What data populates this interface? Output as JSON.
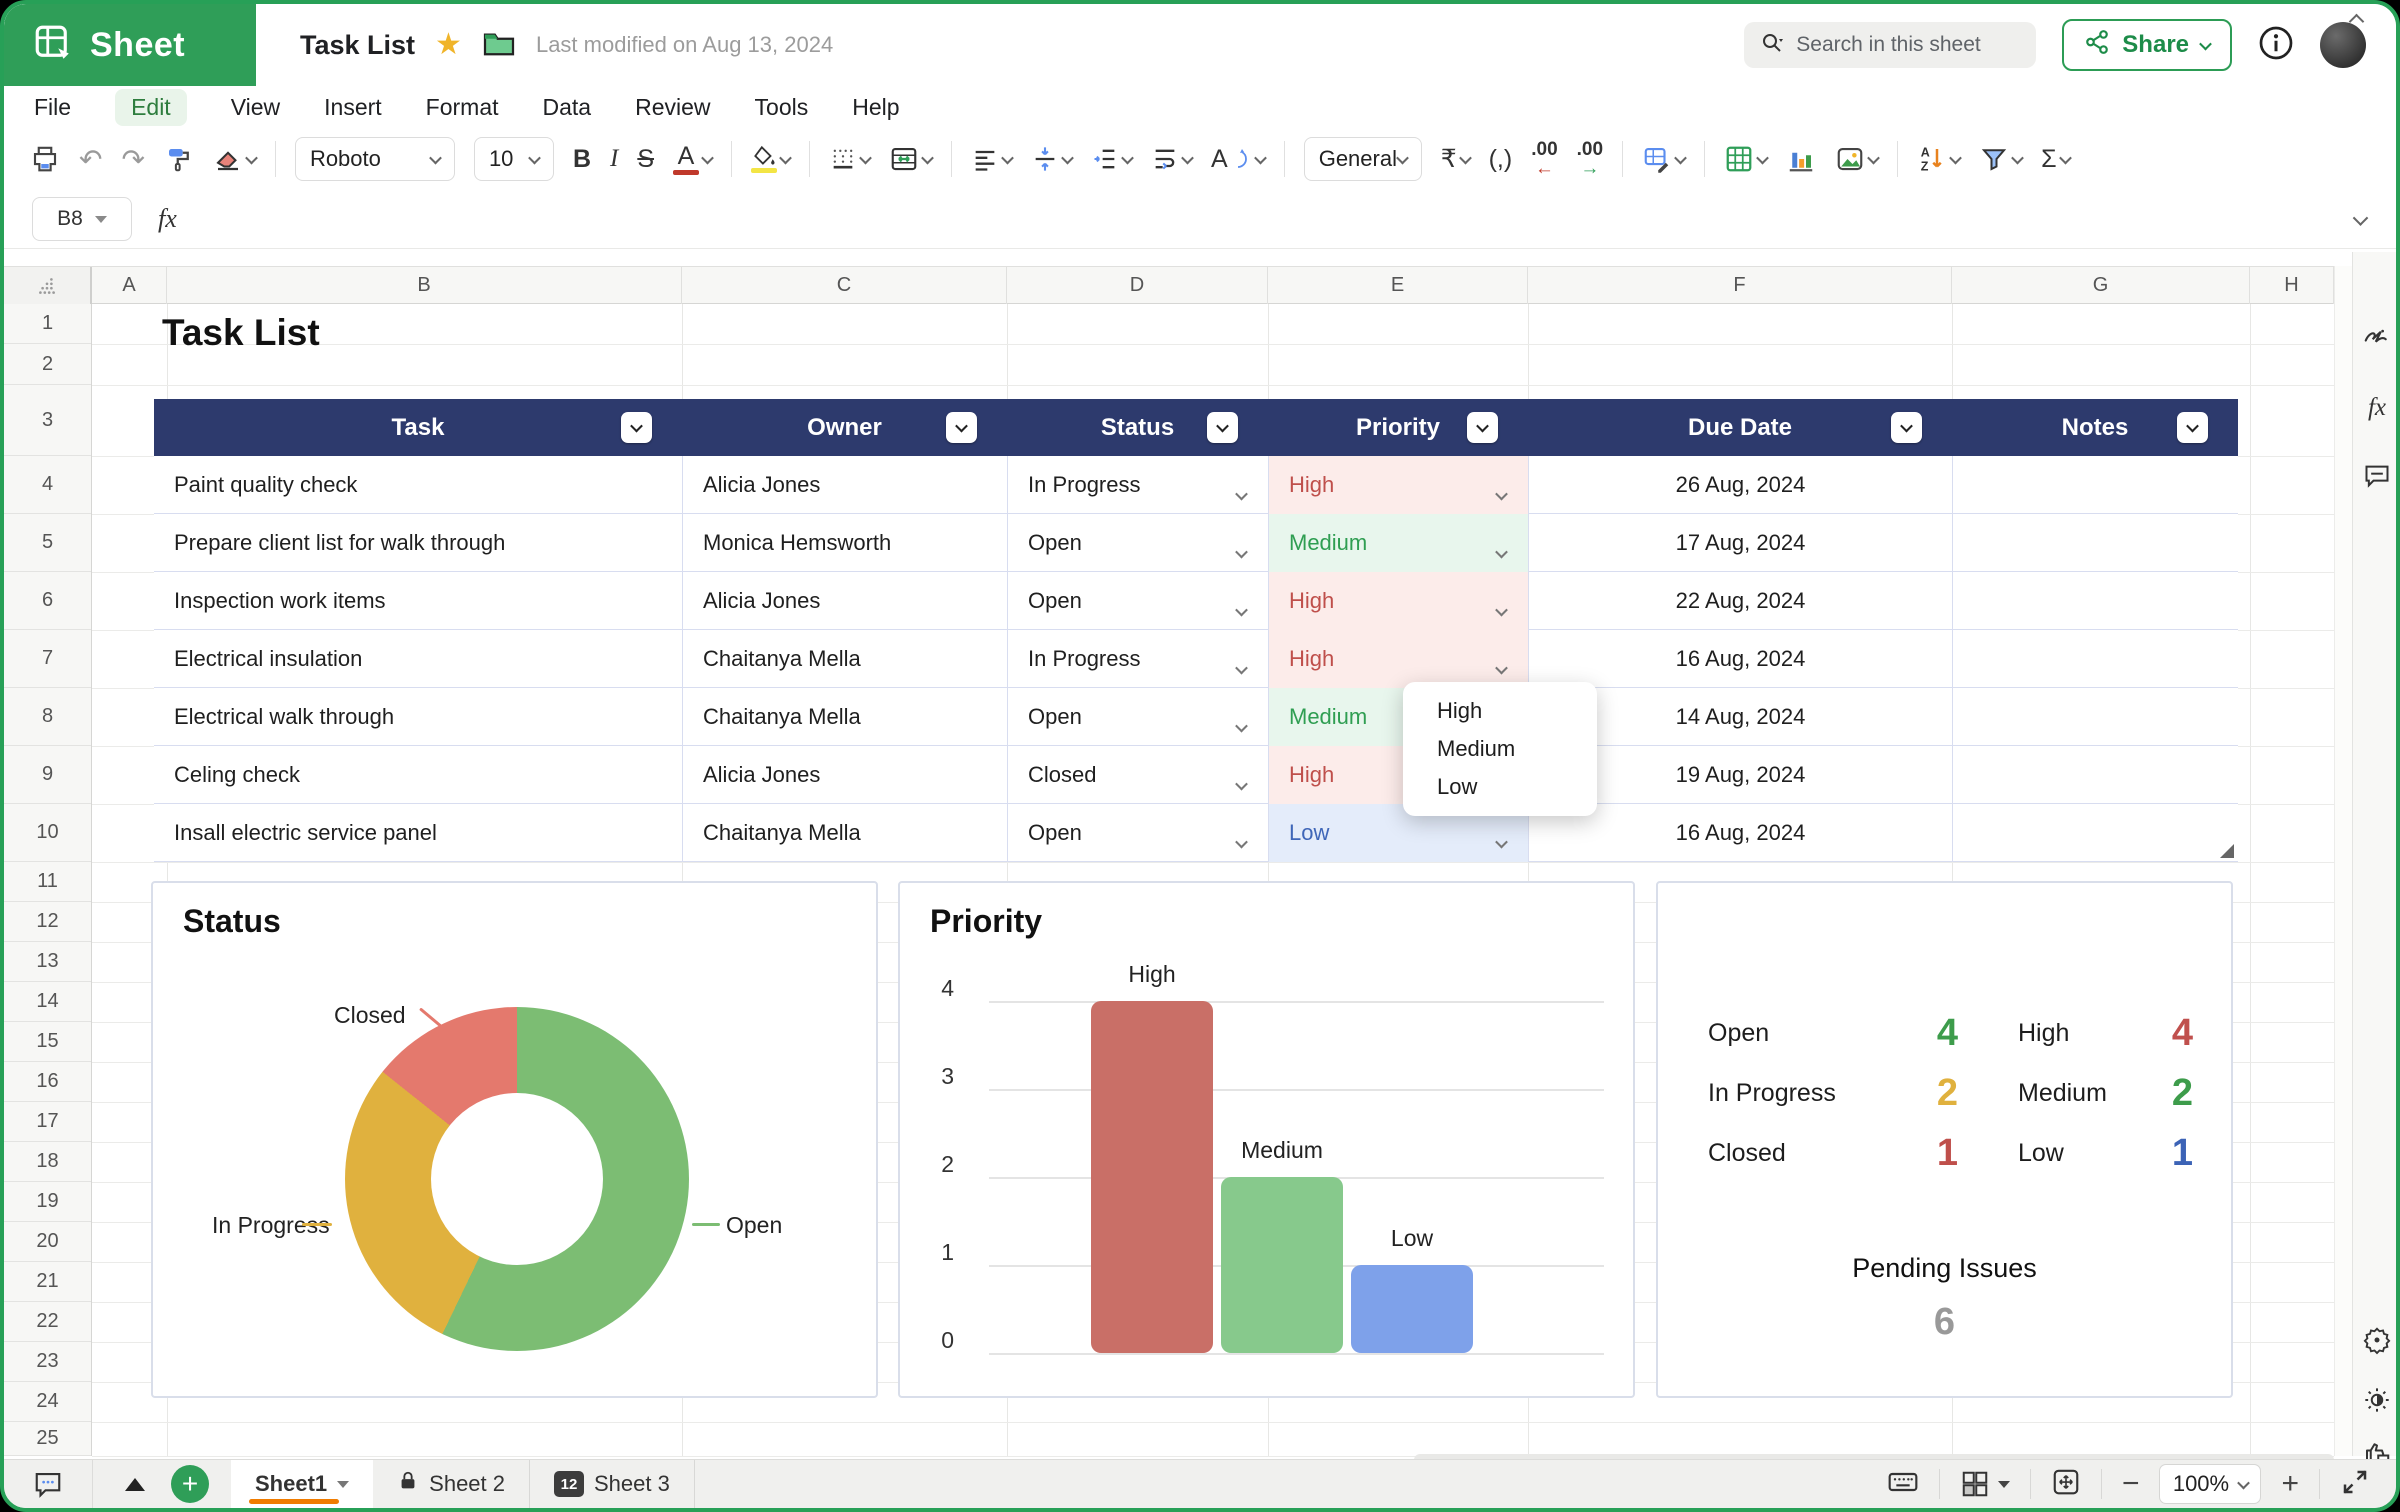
{
  "app": {
    "brand": "Sheet",
    "doc_title": "Task List",
    "last_modified": "Last modified on Aug 13, 2024"
  },
  "topbar": {
    "search_placeholder": "Search in this sheet",
    "share_label": "Share"
  },
  "menubar": {
    "items": [
      "File",
      "Edit",
      "View",
      "Insert",
      "Format",
      "Data",
      "Review",
      "Tools",
      "Help"
    ],
    "active_item": "Edit"
  },
  "toolbar": {
    "font_name": "Roboto",
    "font_size": "10",
    "number_format": "General",
    "undo_glyph": "↶",
    "redo_glyph": "↷",
    "bold_glyph": "B",
    "italic_glyph": "I",
    "strike_glyph": "S",
    "font_color_glyph": "A",
    "currency_glyph": "₹",
    "comma_glyph": "(,)",
    "decimal_glyph": ".00",
    "dec_left_arrow": "←",
    "dec_right_arrow": "→",
    "sum_glyph": "Σ",
    "rotate_glyph": "A"
  },
  "formula_bar": {
    "cell_ref": "B8",
    "fx_label": "fx",
    "formula_value": ""
  },
  "grid": {
    "columns": [
      "A",
      "B",
      "C",
      "D",
      "E",
      "F",
      "G",
      "H"
    ],
    "rows": [
      "1",
      "2",
      "3",
      "4",
      "5",
      "6",
      "7",
      "8",
      "9",
      "10",
      "11",
      "12",
      "13",
      "14",
      "15",
      "16",
      "17",
      "18",
      "19",
      "20",
      "21",
      "22",
      "23",
      "24",
      "25"
    ]
  },
  "sheet": {
    "title": "Task List"
  },
  "table": {
    "headers": [
      "Task",
      "Owner",
      "Status",
      "Priority",
      "Due Date",
      "Notes"
    ],
    "priority_colors": {
      "high": {
        "text": "#bf4f4b",
        "bg": "#fcecea"
      },
      "medium": {
        "text": "#2f9e52",
        "bg": "#e8f6ed"
      },
      "low": {
        "text": "#3f66b8",
        "bg": "#e4ecfa"
      }
    },
    "rows": [
      {
        "task": "Paint quality check",
        "owner": "Alicia Jones",
        "status": "In Progress",
        "priority": "High",
        "priority_level": "high",
        "due_date": "26 Aug, 2024",
        "notes": ""
      },
      {
        "task": "Prepare client list for walk through",
        "owner": "Monica Hemsworth",
        "status": "Open",
        "priority": "Medium",
        "priority_level": "medium",
        "due_date": "17 Aug, 2024",
        "notes": ""
      },
      {
        "task": "Inspection work items",
        "owner": "Alicia Jones",
        "status": "Open",
        "priority": "High",
        "priority_level": "high",
        "due_date": "22 Aug, 2024",
        "notes": ""
      },
      {
        "task": "Electrical insulation",
        "owner": "Chaitanya Mella",
        "status": "In Progress",
        "priority": "High",
        "priority_level": "high",
        "due_date": "16 Aug, 2024",
        "notes": ""
      },
      {
        "task": "Electrical walk through",
        "owner": "Chaitanya Mella",
        "status": "Open",
        "priority": "Medium",
        "priority_level": "medium",
        "due_date": "14 Aug, 2024",
        "notes": ""
      },
      {
        "task": "Celing check",
        "owner": "Alicia Jones",
        "status": "Closed",
        "priority": "High",
        "priority_level": "high",
        "due_date": "19 Aug, 2024",
        "notes": ""
      },
      {
        "task": "Insall electric service panel",
        "owner": "Chaitanya Mella",
        "status": "Open",
        "priority": "Low",
        "priority_level": "low",
        "due_date": "16 Aug, 2024",
        "notes": ""
      }
    ]
  },
  "priority_dropdown": {
    "options": [
      "High",
      "Medium",
      "Low"
    ]
  },
  "chart_data": [
    {
      "type": "pie",
      "donut": true,
      "title": "Status",
      "labels": [
        "Open",
        "In Progress",
        "Closed"
      ],
      "values": [
        4,
        2,
        1
      ],
      "colors": [
        "#7cbd73",
        "#e0b13e",
        "#e4796d"
      ],
      "legend_position": "callout-labels"
    },
    {
      "type": "bar",
      "title": "Priority",
      "categories": [
        "High",
        "Medium",
        "Low"
      ],
      "values": [
        4,
        2,
        1
      ],
      "colors": [
        "#c96f67",
        "#87c98c",
        "#7ea1ea"
      ],
      "xlabel": "",
      "ylabel": "",
      "ylim": [
        0,
        4
      ],
      "yticks": [
        0,
        1,
        2,
        3,
        4
      ],
      "grid": true
    }
  ],
  "summary": {
    "status_counts": [
      {
        "label": "Open",
        "value": "4",
        "color": "#3d9c4b"
      },
      {
        "label": "In Progress",
        "value": "2",
        "color": "#e0b13e"
      },
      {
        "label": "Closed",
        "value": "1",
        "color": "#bf4f4b"
      }
    ],
    "priority_counts": [
      {
        "label": "High",
        "value": "4",
        "color": "#c0504d"
      },
      {
        "label": "Medium",
        "value": "2",
        "color": "#3d9c4b"
      },
      {
        "label": "Low",
        "value": "1",
        "color": "#3c63b6"
      }
    ],
    "pending_label": "Pending Issues",
    "pending_value": "6"
  },
  "sheet_tabs": [
    {
      "label": "Sheet1",
      "active": true
    },
    {
      "label": "Sheet 2",
      "locked": true
    },
    {
      "label": "Sheet 3",
      "badge": "12"
    }
  ],
  "statusbar": {
    "zoom_level": "100%"
  }
}
